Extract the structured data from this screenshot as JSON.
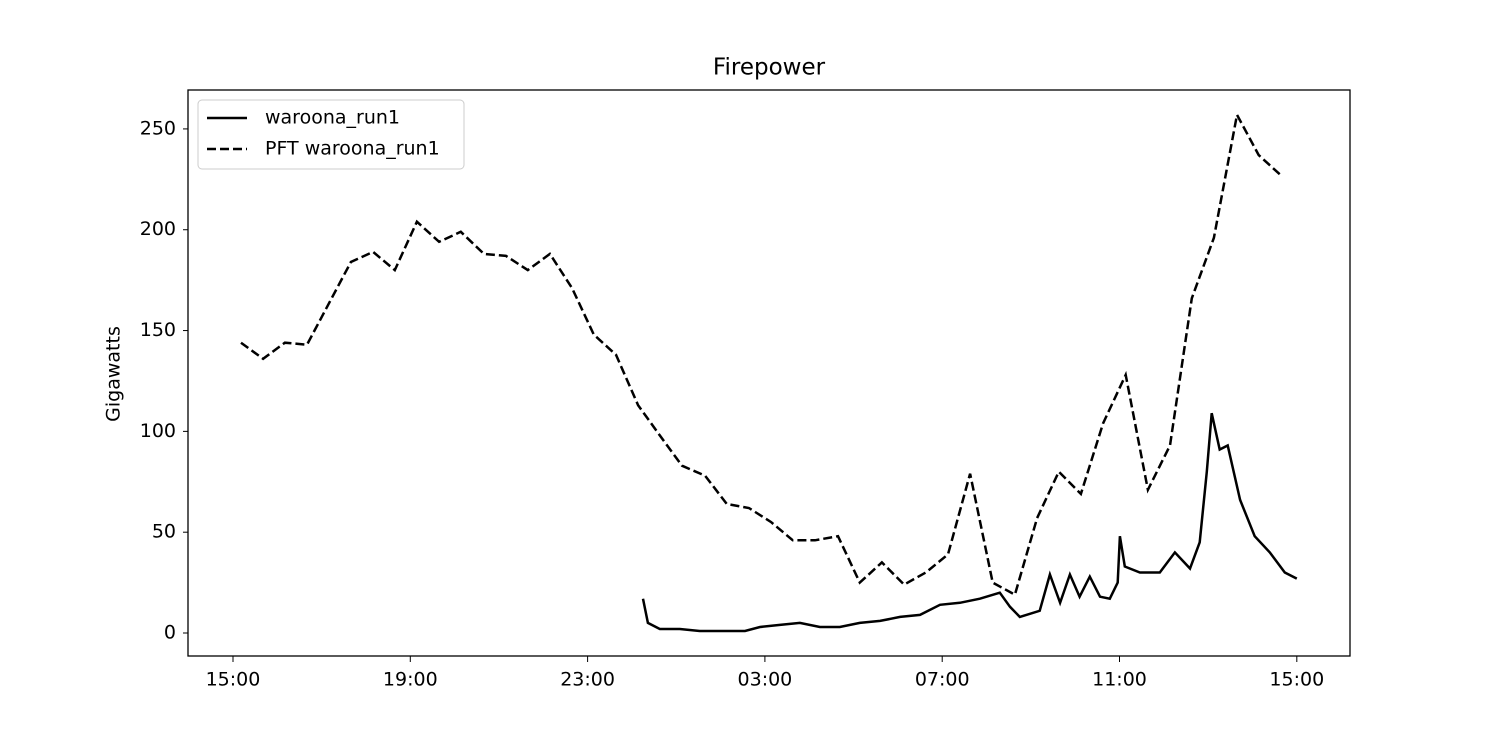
{
  "chart_data": {
    "type": "line",
    "title": "Firepower",
    "ylabel": "Gigawatts",
    "xlim": [
      -1.015,
      25.2
    ],
    "ylim": [
      -11.4,
      269.3
    ],
    "xticks": [
      {
        "value": 0,
        "label": "15:00"
      },
      {
        "value": 4,
        "label": "19:00"
      },
      {
        "value": 8,
        "label": "23:00"
      },
      {
        "value": 12,
        "label": "03:00"
      },
      {
        "value": 16,
        "label": "07:00"
      },
      {
        "value": 20,
        "label": "11:00"
      },
      {
        "value": 24,
        "label": "15:00"
      }
    ],
    "yticks": [
      0,
      50,
      100,
      150,
      200,
      250
    ],
    "legend": "upper left",
    "series": [
      {
        "name": "waroona_run1",
        "color": "#000000",
        "linestyle": "solid",
        "x": [
          9.25,
          9.36,
          9.63,
          10.08,
          10.53,
          11.44,
          11.55,
          11.89,
          12.34,
          12.79,
          13.24,
          13.69,
          14.14,
          14.6,
          15.05,
          15.5,
          15.95,
          16.4,
          16.85,
          17.3,
          17.53,
          17.75,
          18.2,
          18.43,
          18.66,
          18.88,
          19.1,
          19.33,
          19.56,
          19.78,
          19.96,
          20.01,
          20.12,
          20.46,
          20.91,
          21.25,
          21.59,
          21.81,
          21.97,
          22.08,
          22.26,
          22.44,
          22.72,
          23.05,
          23.39,
          23.73,
          24.0
        ],
        "values": [
          17,
          5,
          2,
          2,
          1,
          1,
          1,
          3,
          4,
          5,
          3,
          3,
          5,
          6,
          8,
          9,
          14,
          15,
          17,
          20,
          13,
          8,
          11,
          29,
          15,
          29,
          18,
          28,
          18,
          17,
          25,
          48,
          33,
          30,
          30,
          40,
          32,
          45,
          80,
          109,
          91,
          93,
          66,
          48,
          40,
          30,
          27
        ]
      },
      {
        "name": "PFT waroona_run1",
        "color": "#000000",
        "linestyle": "dashed",
        "x": [
          0.18,
          0.68,
          1.17,
          1.67,
          2.66,
          3.16,
          3.65,
          4.15,
          4.65,
          5.14,
          5.66,
          6.16,
          6.65,
          7.15,
          7.65,
          8.14,
          8.64,
          9.14,
          9.63,
          10.13,
          10.65,
          11.14,
          11.64,
          12.14,
          12.63,
          13.13,
          13.65,
          14.14,
          14.64,
          15.14,
          15.63,
          16.13,
          16.63,
          17.14,
          17.64,
          18.14,
          18.63,
          19.13,
          19.63,
          20.14,
          20.64,
          21.14,
          21.63,
          22.13,
          22.65,
          23.14,
          23.64
        ],
        "values": [
          144,
          136,
          144,
          143,
          184,
          189,
          180,
          204,
          194,
          199,
          188,
          187,
          180,
          188,
          171,
          148,
          138,
          113,
          98,
          83,
          78,
          64,
          62,
          55,
          46,
          46,
          48,
          25,
          35,
          24,
          30,
          39,
          79,
          25,
          19,
          57,
          80,
          69,
          104,
          128,
          71,
          93,
          166,
          196,
          257,
          237,
          227
        ]
      }
    ]
  }
}
